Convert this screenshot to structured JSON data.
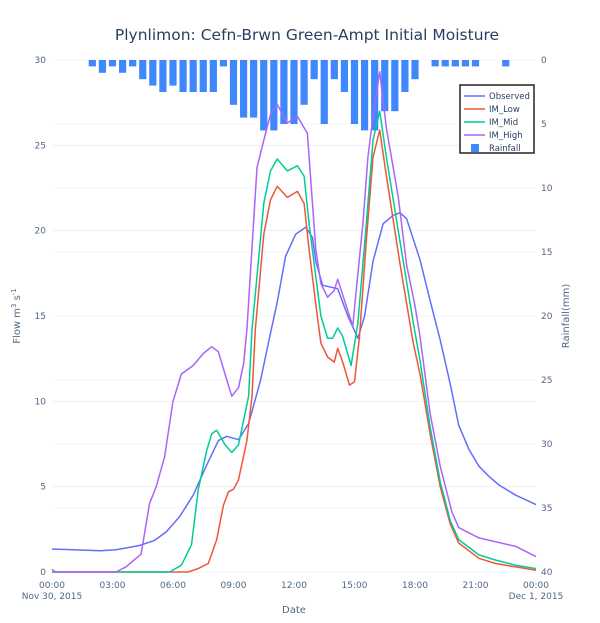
{
  "chart_data": {
    "type": "line",
    "title": "Plynlimon: Cefn-Brwn Green-Ampt Initial Moisture",
    "xlabel": "Date",
    "ylabel": "Flow m³ s⁻¹",
    "ylabel_parts": {
      "main": "Flow m",
      "sup1": "3",
      "mid": " s",
      "sup2": "-1"
    },
    "y2label": "Rainfall(mm)",
    "xlim": [
      "2015-11-30 00:00",
      "2015-12-01 00:00"
    ],
    "ylim": [
      0,
      30
    ],
    "y2lim": [
      40,
      0
    ],
    "y2_reversed": true,
    "grid": true,
    "legend_placement": "top-right",
    "x_ticks": [
      "00:00",
      "03:00",
      "06:00",
      "09:00",
      "12:00",
      "15:00",
      "18:00",
      "21:00",
      "00:00"
    ],
    "x_tick_dates": [
      "Nov 30, 2015",
      "Dec 1, 2015"
    ],
    "y_ticks": [
      "0",
      "5",
      "10",
      "15",
      "20",
      "25",
      "30"
    ],
    "y2_ticks": [
      "0",
      "5",
      "10",
      "15",
      "20",
      "25",
      "30",
      "35",
      "40"
    ],
    "series": [
      {
        "name": "Observed",
        "color": "#636efa",
        "type": "line",
        "points": [
          [
            "2015-11-30 00:00",
            1.35
          ],
          [
            "2015-11-30 02:25",
            1.25
          ],
          [
            "2015-11-30 03:10",
            1.3
          ],
          [
            "2015-11-30 04:20",
            1.55
          ],
          [
            "2015-11-30 05:05",
            1.85
          ],
          [
            "2015-11-30 05:40",
            2.35
          ],
          [
            "2015-11-30 06:20",
            3.25
          ],
          [
            "2015-11-30 07:00",
            4.5
          ],
          [
            "2015-11-30 07:40",
            6.25
          ],
          [
            "2015-11-30 08:15",
            7.7
          ],
          [
            "2015-11-30 08:40",
            7.95
          ],
          [
            "2015-11-30 09:15",
            7.75
          ],
          [
            "2015-11-30 09:45",
            8.7
          ],
          [
            "2015-11-30 10:20",
            11.2
          ],
          [
            "2015-11-30 10:50",
            14.0
          ],
          [
            "2015-11-30 11:10",
            15.8
          ],
          [
            "2015-11-30 11:35",
            18.5
          ],
          [
            "2015-11-30 12:05",
            19.8
          ],
          [
            "2015-11-30 12:35",
            20.2
          ],
          [
            "2015-11-30 12:55",
            19.6
          ],
          [
            "2015-11-30 13:05",
            18.2
          ],
          [
            "2015-11-30 13:25",
            16.8
          ],
          [
            "2015-11-30 14:10",
            16.6
          ],
          [
            "2015-11-30 14:40",
            15.0
          ],
          [
            "2015-11-30 15:10",
            13.7
          ],
          [
            "2015-11-30 15:30",
            15.0
          ],
          [
            "2015-11-30 15:55",
            18.2
          ],
          [
            "2015-11-30 16:25",
            20.4
          ],
          [
            "2015-11-30 16:55",
            20.9
          ],
          [
            "2015-11-30 17:15",
            21.05
          ],
          [
            "2015-11-30 17:35",
            20.7
          ],
          [
            "2015-11-30 17:55",
            19.5
          ],
          [
            "2015-11-30 18:15",
            18.3
          ],
          [
            "2015-11-30 18:45",
            15.9
          ],
          [
            "2015-11-30 19:15",
            13.6
          ],
          [
            "2015-11-30 19:45",
            11.0
          ],
          [
            "2015-11-30 20:10",
            8.6
          ],
          [
            "2015-11-30 20:40",
            7.2
          ],
          [
            "2015-11-30 21:10",
            6.2
          ],
          [
            "2015-11-30 21:40",
            5.6
          ],
          [
            "2015-11-30 22:10",
            5.1
          ],
          [
            "2015-11-30 23:00",
            4.5
          ],
          [
            "2015-12-01 00:00",
            3.95
          ]
        ]
      },
      {
        "name": "IM_Low",
        "color": "#ef553b",
        "type": "line",
        "points": [
          [
            "2015-11-30 00:00",
            0
          ],
          [
            "2015-11-30 06:45",
            0
          ],
          [
            "2015-11-30 07:15",
            0.2
          ],
          [
            "2015-11-30 07:45",
            0.5
          ],
          [
            "2015-11-30 08:10",
            1.9
          ],
          [
            "2015-11-30 08:30",
            3.9
          ],
          [
            "2015-11-30 08:45",
            4.7
          ],
          [
            "2015-11-30 09:00",
            4.85
          ],
          [
            "2015-11-30 09:15",
            5.4
          ],
          [
            "2015-11-30 09:40",
            7.7
          ],
          [
            "2015-11-30 09:55",
            10.3
          ],
          [
            "2015-11-30 10:05",
            14.2
          ],
          [
            "2015-11-30 10:30",
            19.8
          ],
          [
            "2015-11-30 10:50",
            21.8
          ],
          [
            "2015-11-30 11:10",
            22.6
          ],
          [
            "2015-11-30 11:40",
            21.95
          ],
          [
            "2015-11-30 12:10",
            22.3
          ],
          [
            "2015-11-30 12:30",
            21.6
          ],
          [
            "2015-11-30 12:45",
            18.9
          ],
          [
            "2015-11-30 13:05",
            15.7
          ],
          [
            "2015-11-30 13:20",
            13.4
          ],
          [
            "2015-11-30 13:40",
            12.6
          ],
          [
            "2015-11-30 14:00",
            12.3
          ],
          [
            "2015-11-30 14:10",
            13.1
          ],
          [
            "2015-11-30 14:25",
            12.3
          ],
          [
            "2015-11-30 14:45",
            10.95
          ],
          [
            "2015-11-30 15:00",
            11.15
          ],
          [
            "2015-11-30 15:15",
            13.8
          ],
          [
            "2015-11-30 15:35",
            19.4
          ],
          [
            "2015-11-30 15:55",
            24.3
          ],
          [
            "2015-11-30 16:15",
            25.9
          ],
          [
            "2015-11-30 16:35",
            23.2
          ],
          [
            "2015-11-30 17:15",
            18.1
          ],
          [
            "2015-11-30 17:55",
            13.4
          ],
          [
            "2015-11-30 18:15",
            11.6
          ],
          [
            "2015-11-30 18:45",
            8.1
          ],
          [
            "2015-11-30 19:15",
            5.0
          ],
          [
            "2015-11-30 19:45",
            2.8
          ],
          [
            "2015-11-30 20:10",
            1.7
          ],
          [
            "2015-11-30 21:10",
            0.8
          ],
          [
            "2015-11-30 22:00",
            0.5
          ],
          [
            "2015-11-30 23:00",
            0.3
          ],
          [
            "2015-12-01 00:00",
            0.1
          ]
        ]
      },
      {
        "name": "IM_Mid",
        "color": "#00cc96",
        "type": "line",
        "points": [
          [
            "2015-11-30 00:00",
            0
          ],
          [
            "2015-11-30 05:50",
            0
          ],
          [
            "2015-11-30 06:25",
            0.4
          ],
          [
            "2015-11-30 06:55",
            1.6
          ],
          [
            "2015-11-30 07:15",
            4.8
          ],
          [
            "2015-11-30 07:40",
            7.1
          ],
          [
            "2015-11-30 07:55",
            8.1
          ],
          [
            "2015-11-30 08:10",
            8.3
          ],
          [
            "2015-11-30 08:35",
            7.45
          ],
          [
            "2015-11-30 08:55",
            7.0
          ],
          [
            "2015-11-30 09:15",
            7.45
          ],
          [
            "2015-11-30 09:45",
            10.3
          ],
          [
            "2015-11-30 09:55",
            14.2
          ],
          [
            "2015-11-30 10:30",
            21.6
          ],
          [
            "2015-11-30 10:50",
            23.5
          ],
          [
            "2015-11-30 11:10",
            24.2
          ],
          [
            "2015-11-30 11:40",
            23.5
          ],
          [
            "2015-11-30 12:10",
            23.8
          ],
          [
            "2015-11-30 12:30",
            23.2
          ],
          [
            "2015-11-30 12:45",
            20.4
          ],
          [
            "2015-11-30 13:05",
            17.3
          ],
          [
            "2015-11-30 13:20",
            15.0
          ],
          [
            "2015-11-30 13:40",
            13.7
          ],
          [
            "2015-11-30 13:55",
            13.7
          ],
          [
            "2015-11-30 14:10",
            14.3
          ],
          [
            "2015-11-30 14:25",
            13.8
          ],
          [
            "2015-11-30 14:50",
            12.1
          ],
          [
            "2015-11-30 15:10",
            14.6
          ],
          [
            "2015-11-30 15:35",
            20.4
          ],
          [
            "2015-11-30 15:55",
            25.3
          ],
          [
            "2015-11-30 16:15",
            27.0
          ],
          [
            "2015-11-30 16:35",
            24.3
          ],
          [
            "2015-11-30 17:15",
            19.4
          ],
          [
            "2015-11-30 17:55",
            14.6
          ],
          [
            "2015-11-30 18:15",
            12.4
          ],
          [
            "2015-11-30 18:45",
            8.5
          ],
          [
            "2015-11-30 19:15",
            5.3
          ],
          [
            "2015-11-30 19:45",
            3.0
          ],
          [
            "2015-11-30 20:10",
            1.9
          ],
          [
            "2015-11-30 21:10",
            1.0
          ],
          [
            "2015-11-30 22:00",
            0.7
          ],
          [
            "2015-11-30 23:00",
            0.4
          ],
          [
            "2015-12-01 00:00",
            0.2
          ]
        ]
      },
      {
        "name": "IM_High",
        "color": "#ab63fa",
        "type": "line",
        "points": [
          [
            "2015-11-30 00:00",
            0.15
          ],
          [
            "2015-11-30 00:10",
            0
          ],
          [
            "2015-11-30 03:10",
            0
          ],
          [
            "2015-11-30 03:40",
            0.3
          ],
          [
            "2015-11-30 04:25",
            1.05
          ],
          [
            "2015-11-30 04:50",
            4.0
          ],
          [
            "2015-11-30 05:10",
            5.0
          ],
          [
            "2015-11-30 05:35",
            6.75
          ],
          [
            "2015-11-30 06:00",
            10.0
          ],
          [
            "2015-11-30 06:25",
            11.6
          ],
          [
            "2015-11-30 07:00",
            12.1
          ],
          [
            "2015-11-30 07:30",
            12.8
          ],
          [
            "2015-11-30 07:55",
            13.2
          ],
          [
            "2015-11-30 08:15",
            12.9
          ],
          [
            "2015-11-30 08:40",
            11.25
          ],
          [
            "2015-11-30 08:55",
            10.3
          ],
          [
            "2015-11-30 09:15",
            10.8
          ],
          [
            "2015-11-30 09:30",
            12.2
          ],
          [
            "2015-11-30 09:40",
            14.2
          ],
          [
            "2015-11-30 10:10",
            23.7
          ],
          [
            "2015-11-30 10:30",
            25.3
          ],
          [
            "2015-11-30 10:50",
            26.8
          ],
          [
            "2015-11-30 11:10",
            27.4
          ],
          [
            "2015-11-30 11:40",
            26.3
          ],
          [
            "2015-11-30 12:10",
            26.7
          ],
          [
            "2015-11-30 12:40",
            25.7
          ],
          [
            "2015-11-30 13:05",
            18.9
          ],
          [
            "2015-11-30 13:20",
            16.9
          ],
          [
            "2015-11-30 13:40",
            16.1
          ],
          [
            "2015-11-30 14:00",
            16.5
          ],
          [
            "2015-11-30 14:10",
            17.15
          ],
          [
            "2015-11-30 14:55",
            14.4
          ],
          [
            "2015-11-30 15:05",
            16.5
          ],
          [
            "2015-11-30 15:25",
            20.4
          ],
          [
            "2015-11-30 15:40",
            24.3
          ],
          [
            "2015-11-30 15:55",
            26.7
          ],
          [
            "2015-11-30 16:15",
            29.3
          ],
          [
            "2015-11-30 16:35",
            26.0
          ],
          [
            "2015-11-30 17:10",
            22.0
          ],
          [
            "2015-11-30 17:35",
            18.0
          ],
          [
            "2015-11-30 18:00",
            15.6
          ],
          [
            "2015-11-30 18:15",
            13.8
          ],
          [
            "2015-11-30 18:45",
            9.3
          ],
          [
            "2015-11-30 19:15",
            6.2
          ],
          [
            "2015-11-30 19:50",
            3.5
          ],
          [
            "2015-11-30 20:10",
            2.6
          ],
          [
            "2015-11-30 21:10",
            2.0
          ],
          [
            "2015-11-30 23:00",
            1.5
          ],
          [
            "2015-12-01 00:00",
            0.9
          ]
        ]
      },
      {
        "name": "Rainfall",
        "color": "#3f87fc",
        "type": "bar",
        "axis": "y2",
        "points": [
          [
            "2015-11-30 02:00",
            0.5
          ],
          [
            "2015-11-30 02:30",
            1
          ],
          [
            "2015-11-30 03:00",
            0.5
          ],
          [
            "2015-11-30 03:30",
            1
          ],
          [
            "2015-11-30 04:00",
            0.5
          ],
          [
            "2015-11-30 04:30",
            1.5
          ],
          [
            "2015-11-30 05:00",
            2
          ],
          [
            "2015-11-30 05:30",
            2.5
          ],
          [
            "2015-11-30 06:00",
            2
          ],
          [
            "2015-11-30 06:30",
            2.5
          ],
          [
            "2015-11-30 07:00",
            2.5
          ],
          [
            "2015-11-30 07:30",
            2.5
          ],
          [
            "2015-11-30 08:00",
            2.5
          ],
          [
            "2015-11-30 08:30",
            0.5
          ],
          [
            "2015-11-30 09:00",
            3.5
          ],
          [
            "2015-11-30 09:30",
            4.5
          ],
          [
            "2015-11-30 10:00",
            4.5
          ],
          [
            "2015-11-30 10:30",
            5.5
          ],
          [
            "2015-11-30 11:00",
            5.5
          ],
          [
            "2015-11-30 11:30",
            5
          ],
          [
            "2015-11-30 12:00",
            5
          ],
          [
            "2015-11-30 12:30",
            3.5
          ],
          [
            "2015-11-30 13:00",
            1.5
          ],
          [
            "2015-11-30 13:30",
            5
          ],
          [
            "2015-11-30 14:00",
            1.5
          ],
          [
            "2015-11-30 14:30",
            2.5
          ],
          [
            "2015-11-30 15:00",
            5
          ],
          [
            "2015-11-30 15:30",
            5.5
          ],
          [
            "2015-11-30 16:00",
            5.5
          ],
          [
            "2015-11-30 16:30",
            4
          ],
          [
            "2015-11-30 17:00",
            4
          ],
          [
            "2015-11-30 17:30",
            2.5
          ],
          [
            "2015-11-30 18:00",
            1.5
          ],
          [
            "2015-11-30 19:00",
            0.5
          ],
          [
            "2015-11-30 19:30",
            0.5
          ],
          [
            "2015-11-30 20:00",
            0.5
          ],
          [
            "2015-11-30 20:30",
            0.5
          ],
          [
            "2015-11-30 21:00",
            0.5
          ],
          [
            "2015-11-30 22:30",
            0.5
          ]
        ]
      }
    ]
  }
}
